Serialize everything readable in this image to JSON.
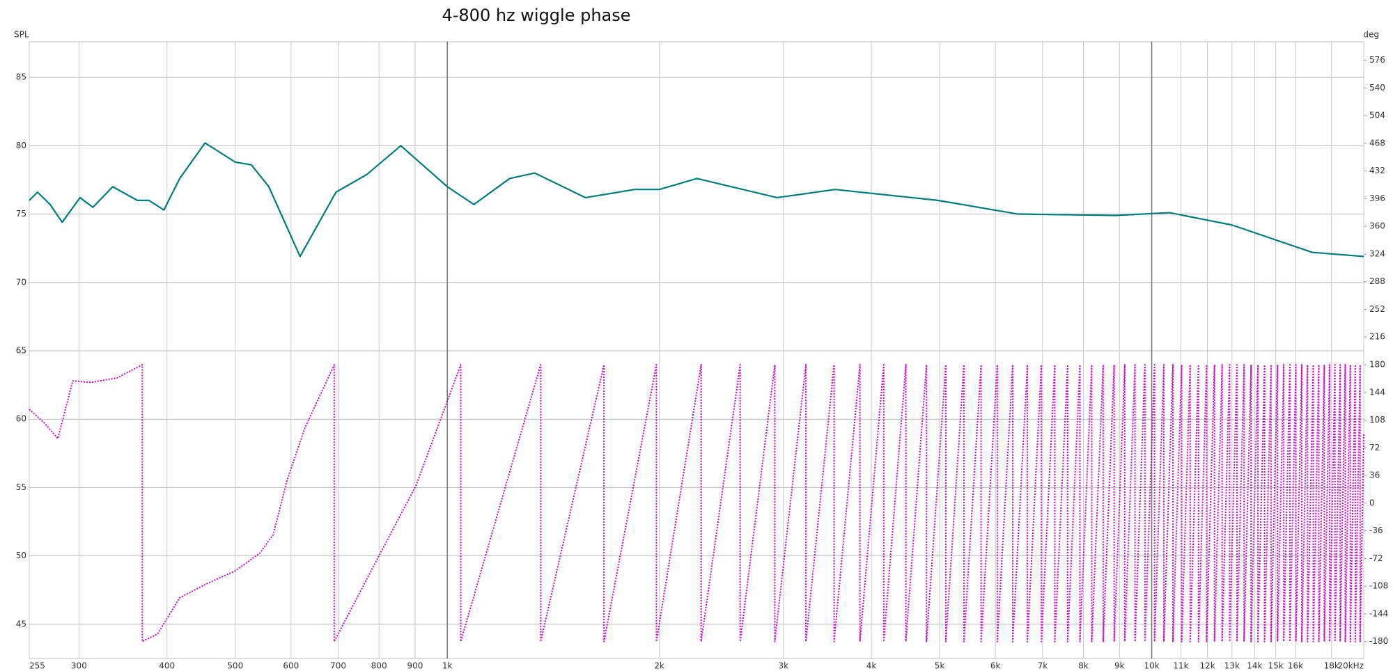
{
  "chart_data": {
    "type": "line",
    "title": "4-800 hz wiggle phase",
    "y_label": "SPL",
    "y2_label": "deg",
    "xscale": "log",
    "grid": true,
    "xlim": [
      255,
      20000
    ],
    "ylim": [
      42.5,
      87.6
    ],
    "y2lim": [
      -202,
      600
    ],
    "xticks": [
      255,
      300,
      400,
      500,
      600,
      700,
      800,
      900,
      {
        "value": 1000,
        "label": "1k"
      },
      {
        "value": 2000,
        "label": "2k"
      },
      {
        "value": 3000,
        "label": "3k"
      },
      {
        "value": 4000,
        "label": "4k"
      },
      {
        "value": 5000,
        "label": "5k"
      },
      {
        "value": 6000,
        "label": "6k"
      },
      {
        "value": 7000,
        "label": "7k"
      },
      {
        "value": 8000,
        "label": "8k"
      },
      {
        "value": 9000,
        "label": "9k"
      },
      {
        "value": 10000,
        "label": "10k"
      },
      {
        "value": 11000,
        "label": "11k"
      },
      {
        "value": 12000,
        "label": "12k"
      },
      {
        "value": 13000,
        "label": "13k"
      },
      {
        "value": 14000,
        "label": "14k"
      },
      {
        "value": 15000,
        "label": "15k"
      },
      {
        "value": 16000,
        "label": "16k"
      },
      {
        "value": 18000,
        "label": "18k"
      },
      {
        "value": 20000,
        "label": "20kHz"
      }
    ],
    "yticks": [
      45,
      50,
      55,
      60,
      65,
      70,
      75,
      80,
      85
    ],
    "y2ticks": [
      -180,
      -144,
      -108,
      -72,
      -36,
      0,
      36,
      72,
      108,
      144,
      180,
      216,
      252,
      288,
      324,
      360,
      396,
      432,
      468,
      504,
      540,
      576
    ],
    "series": [
      {
        "color": "#007b7b",
        "style": "solid",
        "x": [
          255,
          262,
          273,
          284,
          301,
          314,
          335,
          363,
          377,
          396,
          417,
          453,
          500,
          527,
          558,
          618,
          695,
          769,
          859,
          1000,
          1091,
          1226,
          1331,
          1571,
          1845,
          2000,
          2262,
          2939,
          3553,
          4971,
          6460,
          8894,
          10600,
          13000,
          16900,
          20000
        ],
        "values": [
          76.0,
          76.6,
          75.7,
          74.4,
          76.2,
          75.5,
          77.0,
          76.0,
          76.0,
          75.3,
          77.6,
          80.2,
          78.8,
          78.6,
          77.0,
          71.9,
          76.6,
          77.9,
          80.0,
          77.0,
          75.7,
          77.6,
          78.0,
          76.2,
          76.8,
          76.8,
          77.6,
          76.2,
          76.8,
          76.0,
          75.0,
          74.9,
          75.1,
          74.2,
          72.2,
          71.9
        ]
      },
      {
        "color": "#d000d0",
        "style": "dotted",
        "axis": "y2",
        "x": [
          255,
          268,
          280,
          287,
          294,
          312,
          340,
          369,
          369,
          388,
          417,
          455,
          500,
          542,
          566,
          592,
          628,
          691,
          691,
          792,
          903,
          1045,
          1045,
          1357,
          1357,
          1669,
          1669,
          1981,
          1981,
          2293,
          2293,
          2605,
          2605,
          2917,
          2917,
          3229,
          3229,
          3541,
          3541,
          3853,
          3853,
          4165,
          4165,
          4477,
          4477,
          4789,
          4789,
          5101,
          5101,
          5413,
          5413,
          5725,
          5725,
          6037,
          6037,
          6349,
          6349,
          6661,
          6661,
          6973,
          6973,
          7285,
          7285,
          7597,
          7597,
          7909,
          7909,
          8221,
          8221,
          8533,
          8533,
          8845,
          8845,
          9157,
          9157,
          9469,
          9469,
          9781,
          9781,
          10093,
          10093,
          10405,
          10405,
          10717,
          10717,
          11029,
          11029,
          11341,
          11341,
          11653,
          11653,
          11965,
          11965,
          12277,
          12277,
          12589,
          12589,
          12901,
          12901,
          13213,
          13213,
          13525,
          13525,
          13837,
          13837,
          14149,
          14149,
          14461,
          14461,
          14773,
          14773,
          15085,
          15085,
          15397,
          15397,
          15709,
          15709,
          16021,
          16021,
          16333,
          16333,
          16645,
          16645,
          16957,
          16957,
          17269,
          17269,
          17581,
          17581,
          17893,
          17893,
          18205,
          18205,
          18517,
          18517,
          18829,
          18829,
          19141,
          19141,
          19453,
          19453,
          19765,
          19765,
          20000
        ],
        "values": [
          122,
          104,
          84,
          122,
          159,
          157,
          163,
          180,
          -180,
          -170,
          -123,
          -105,
          -88,
          -65,
          -41,
          29,
          98,
          180,
          -180,
          -76,
          23,
          180,
          -180,
          180,
          -180,
          180,
          -180,
          180,
          -180,
          180,
          -180,
          180,
          -180,
          180,
          -180,
          180,
          -180,
          180,
          -180,
          180,
          -180,
          180,
          -180,
          180,
          -180,
          180,
          -180,
          180,
          -180,
          180,
          -180,
          180,
          -180,
          180,
          -180,
          180,
          -180,
          180,
          -180,
          180,
          -180,
          180,
          -180,
          180,
          -180,
          180,
          -180,
          180,
          -180,
          180,
          -180,
          180,
          -180,
          180,
          -180,
          180,
          -180,
          180,
          -180,
          180,
          -180,
          180,
          -180,
          180,
          -180,
          180,
          -180,
          180,
          -180,
          180,
          -180,
          180,
          -180,
          180,
          -180,
          180,
          -180,
          180,
          -180,
          180,
          -180,
          180,
          -180,
          180,
          -180,
          180,
          -180,
          180,
          -180,
          180,
          -180,
          180,
          -180,
          180,
          -180,
          180,
          -180,
          180,
          -180,
          180,
          -180,
          180,
          -180,
          180,
          -180,
          180,
          -180,
          180,
          -180,
          180,
          -180,
          180,
          -180,
          180,
          -180,
          180,
          -180,
          180,
          -180,
          180,
          -180,
          180,
          -180,
          91
        ]
      }
    ]
  }
}
